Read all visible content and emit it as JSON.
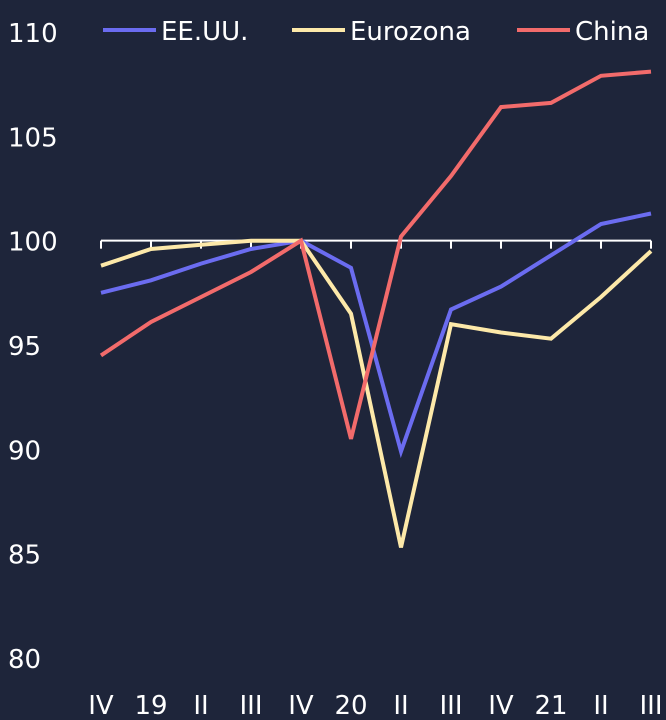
{
  "chart_data": {
    "type": "line",
    "title": "",
    "xlabel": "",
    "ylabel": "",
    "categories": [
      "IV",
      "19",
      "II",
      "III",
      "IV",
      "20",
      "II",
      "III",
      "IV",
      "21",
      "II",
      "III"
    ],
    "ylim": [
      80,
      110
    ],
    "yticks": [
      "80",
      "85",
      "90",
      "95",
      "100",
      "105",
      "110"
    ],
    "baseline": 100,
    "legend_position": "top",
    "grid": false,
    "series": [
      {
        "name": "EE.UU.",
        "color": "#6b6cf0",
        "values": [
          97.5,
          98.1,
          98.9,
          99.6,
          100.0,
          98.7,
          89.9,
          96.7,
          97.8,
          99.3,
          100.8,
          101.3
        ]
      },
      {
        "name": "Eurozona",
        "color": "#fde9a9",
        "values": [
          98.8,
          99.6,
          99.8,
          100.0,
          100.0,
          96.5,
          85.3,
          96.0,
          95.6,
          95.3,
          97.3,
          99.5
        ]
      },
      {
        "name": "China",
        "color": "#f26b6b",
        "values": [
          94.5,
          96.1,
          97.3,
          98.5,
          100.0,
          90.5,
          100.2,
          103.1,
          106.4,
          106.6,
          107.9,
          108.1
        ]
      }
    ]
  }
}
